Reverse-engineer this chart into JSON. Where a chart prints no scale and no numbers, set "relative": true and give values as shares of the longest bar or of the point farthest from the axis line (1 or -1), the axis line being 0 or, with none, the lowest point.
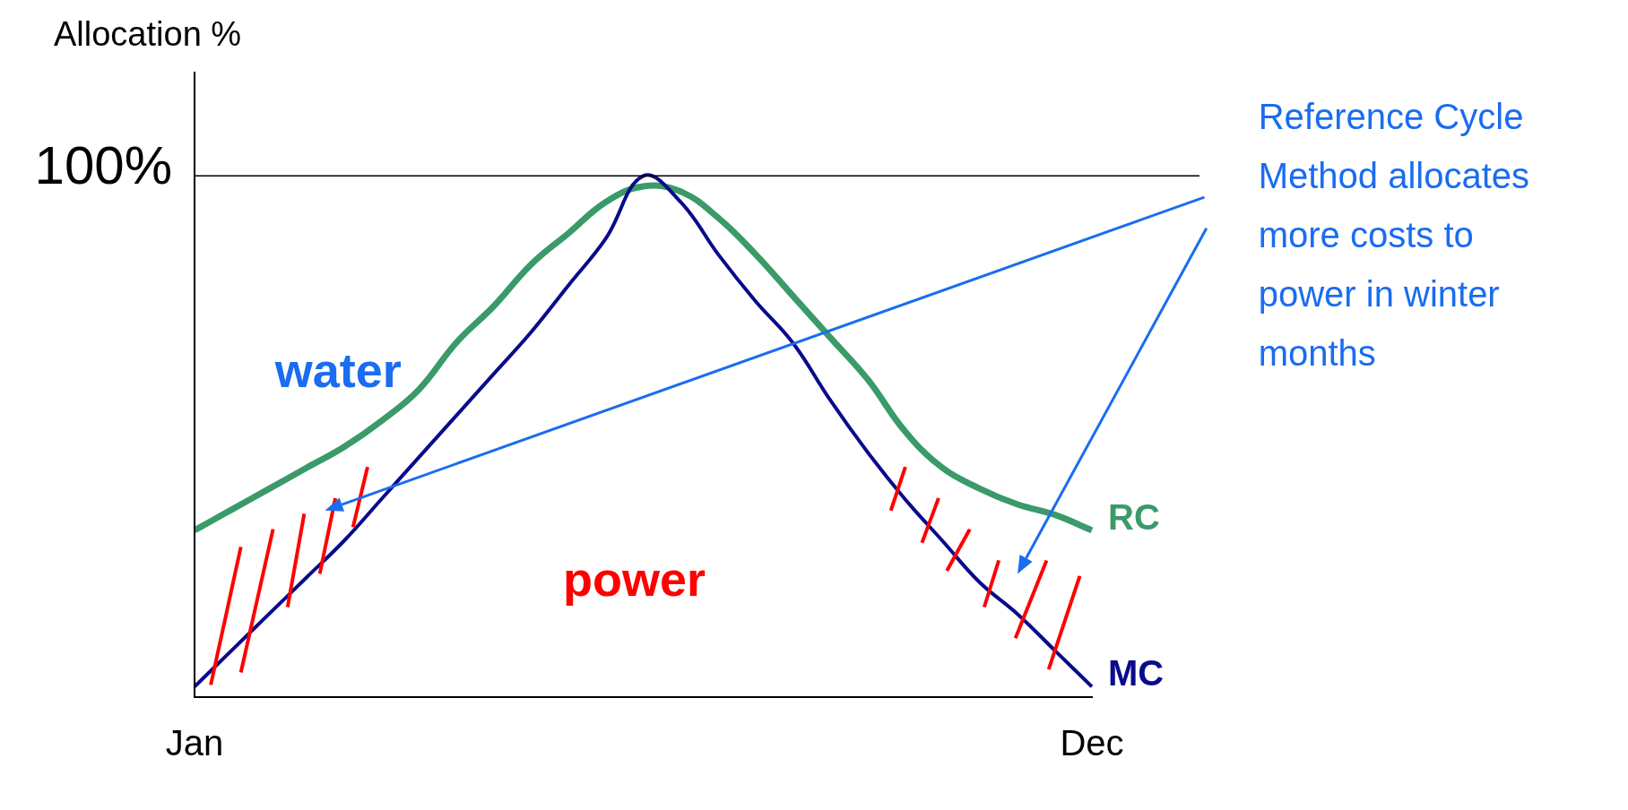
{
  "chart_data": {
    "type": "line",
    "relative": true,
    "ylabel": "Allocation %",
    "categories": [
      "Jan",
      null,
      null,
      null,
      null,
      null,
      null,
      null,
      null,
      null,
      null,
      null,
      null,
      null,
      null,
      null,
      null,
      null,
      null,
      null,
      null,
      null,
      null,
      null,
      "Dec"
    ],
    "series": [
      {
        "name": "MC",
        "color": "#0a0a8c",
        "values": [
          0.02,
          0.09,
          0.16,
          0.23,
          0.3,
          0.38,
          0.46,
          0.54,
          0.62,
          0.7,
          0.79,
          0.88,
          1,
          0.95,
          0.85,
          0.76,
          0.68,
          0.57,
          0.47,
          0.38,
          0.3,
          0.22,
          0.16,
          0.09,
          0.02
        ]
      },
      {
        "name": "RC",
        "color": "#3a9a6a",
        "values": [
          0.32,
          0.36,
          0.4,
          0.44,
          0.48,
          0.53,
          0.59,
          0.68,
          0.75,
          0.83,
          0.89,
          0.95,
          0.98,
          0.97,
          0.92,
          0.85,
          0.77,
          0.69,
          0.61,
          0.51,
          0.44,
          0.4,
          0.37,
          0.35,
          0.32
        ]
      }
    ],
    "ref_lines": [
      {
        "axis": "y",
        "value": 1,
        "label": "100%"
      }
    ],
    "annotations": [
      "water",
      "power",
      "Reference Cycle Method allocates more costs to power in winter months"
    ],
    "grid": false,
    "legend": false,
    "marker": "none",
    "line_style": "solid"
  }
}
